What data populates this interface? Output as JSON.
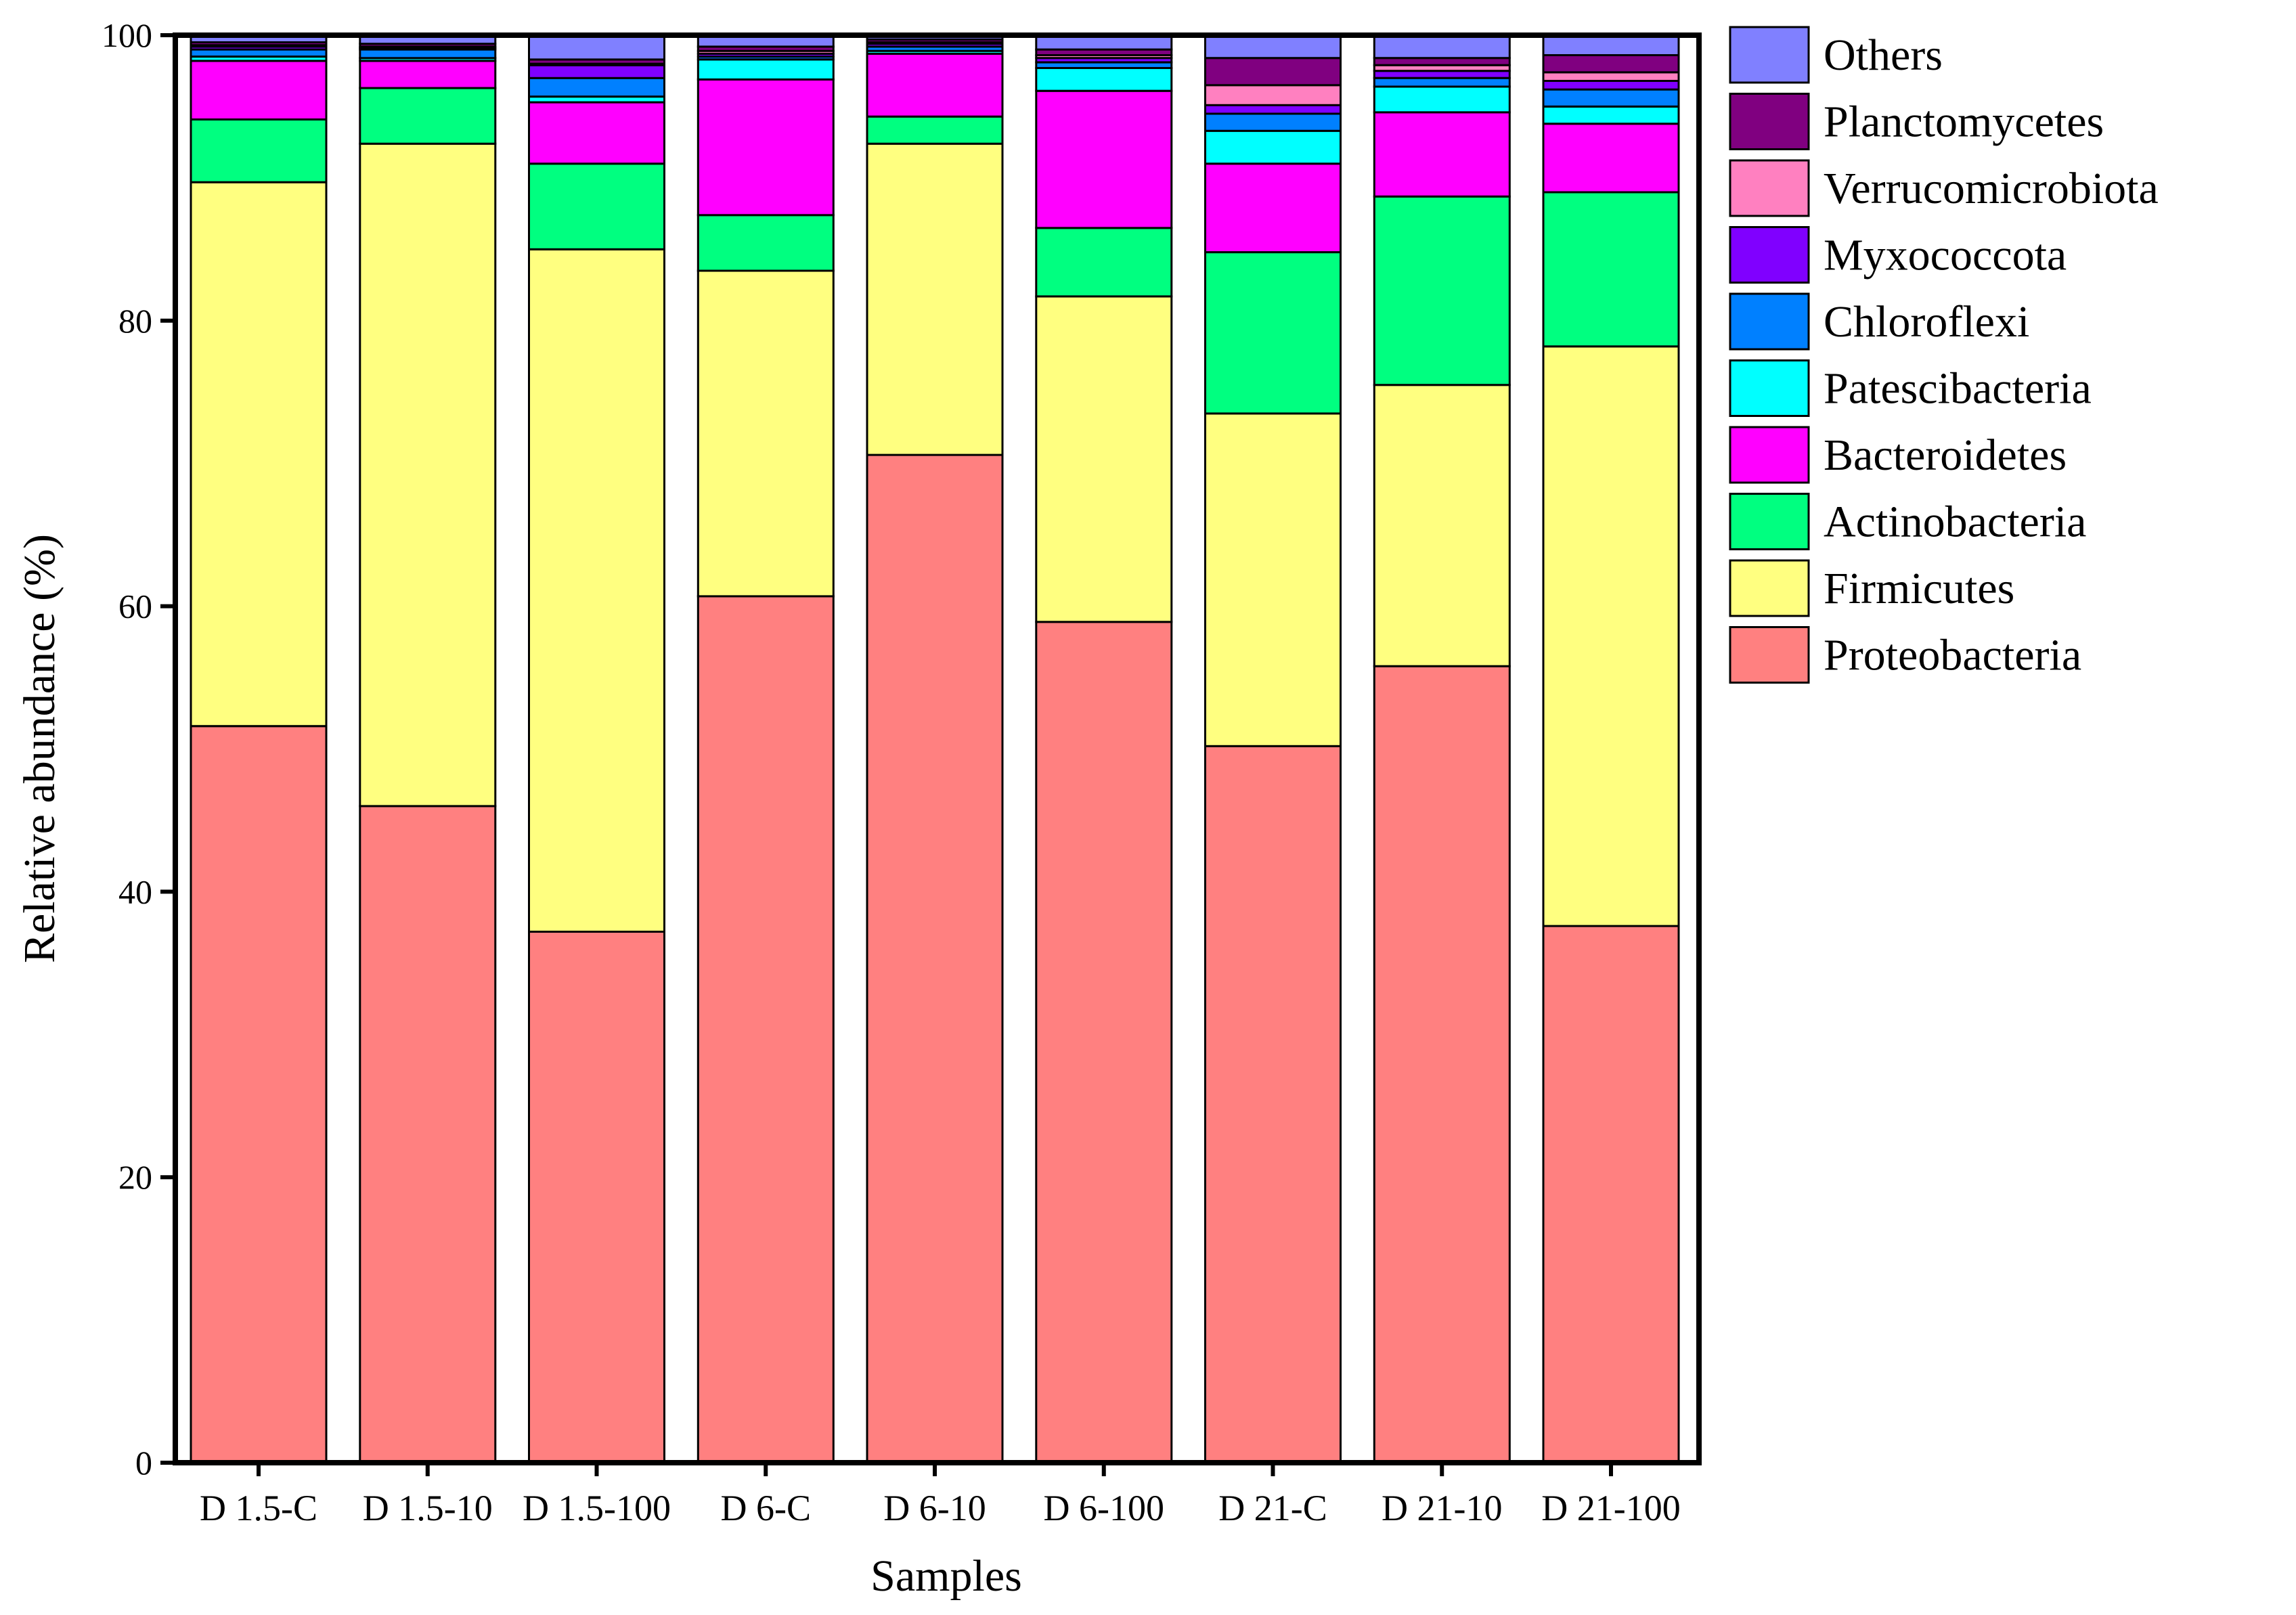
{
  "chart_data": {
    "type": "stacked-bar",
    "title": "",
    "xlabel": "Samples",
    "ylabel": "Relative abundance (%)",
    "ylim": [
      0,
      100
    ],
    "yticks": [
      "0",
      "20",
      "40",
      "60",
      "80",
      "100"
    ],
    "legend_position": "right",
    "categories": [
      "D 1.5-C",
      "D 1.5-10",
      "D 1.5-100",
      "D 6-C",
      "D 6-10",
      "D 6-100",
      "D 21-C",
      "D 21-10",
      "D 21-100"
    ],
    "series": [
      {
        "name": "Proteobacteria",
        "color": "#FF8080",
        "values": [
          51.6,
          46.0,
          37.2,
          60.7,
          70.6,
          58.9,
          50.2,
          55.8,
          37.6
        ]
      },
      {
        "name": "Firmicutes",
        "color": "#FFFF80",
        "values": [
          38.1,
          46.4,
          47.8,
          22.8,
          21.8,
          22.8,
          23.3,
          19.7,
          40.6
        ]
      },
      {
        "name": "Actinobacteria",
        "color": "#00FF80",
        "values": [
          4.4,
          3.9,
          6.0,
          3.9,
          1.9,
          4.8,
          11.3,
          13.2,
          10.8
        ]
      },
      {
        "name": "Bacteroidetes",
        "color": "#FF00FF",
        "values": [
          4.1,
          1.9,
          4.3,
          9.5,
          4.4,
          9.6,
          6.2,
          5.9,
          4.8
        ]
      },
      {
        "name": "Patescibacteria",
        "color": "#00FFFF",
        "values": [
          0.3,
          0.2,
          0.4,
          1.4,
          0.2,
          1.6,
          2.3,
          1.8,
          1.2
        ]
      },
      {
        "name": "Chloroflexi",
        "color": "#0080FF",
        "values": [
          0.5,
          0.6,
          1.3,
          0.2,
          0.3,
          0.4,
          1.2,
          0.6,
          1.2
        ]
      },
      {
        "name": "Myxococcota",
        "color": "#8000FF",
        "values": [
          0.2,
          0.1,
          0.9,
          0.2,
          0.2,
          0.3,
          0.6,
          0.5,
          0.6
        ]
      },
      {
        "name": "Verrucomicrobiota",
        "color": "#FF80C0",
        "values": [
          0.1,
          0.1,
          0.1,
          0.2,
          0.1,
          0.2,
          1.4,
          0.4,
          0.6
        ]
      },
      {
        "name": "Planctomycetes",
        "color": "#800080",
        "values": [
          0.2,
          0.2,
          0.3,
          0.3,
          0.2,
          0.4,
          1.9,
          0.5,
          1.2
        ]
      },
      {
        "name": "Others",
        "color": "#8080FF",
        "values": [
          0.5,
          0.6,
          1.7,
          0.8,
          0.3,
          1.0,
          1.6,
          1.6,
          1.4
        ]
      }
    ]
  }
}
